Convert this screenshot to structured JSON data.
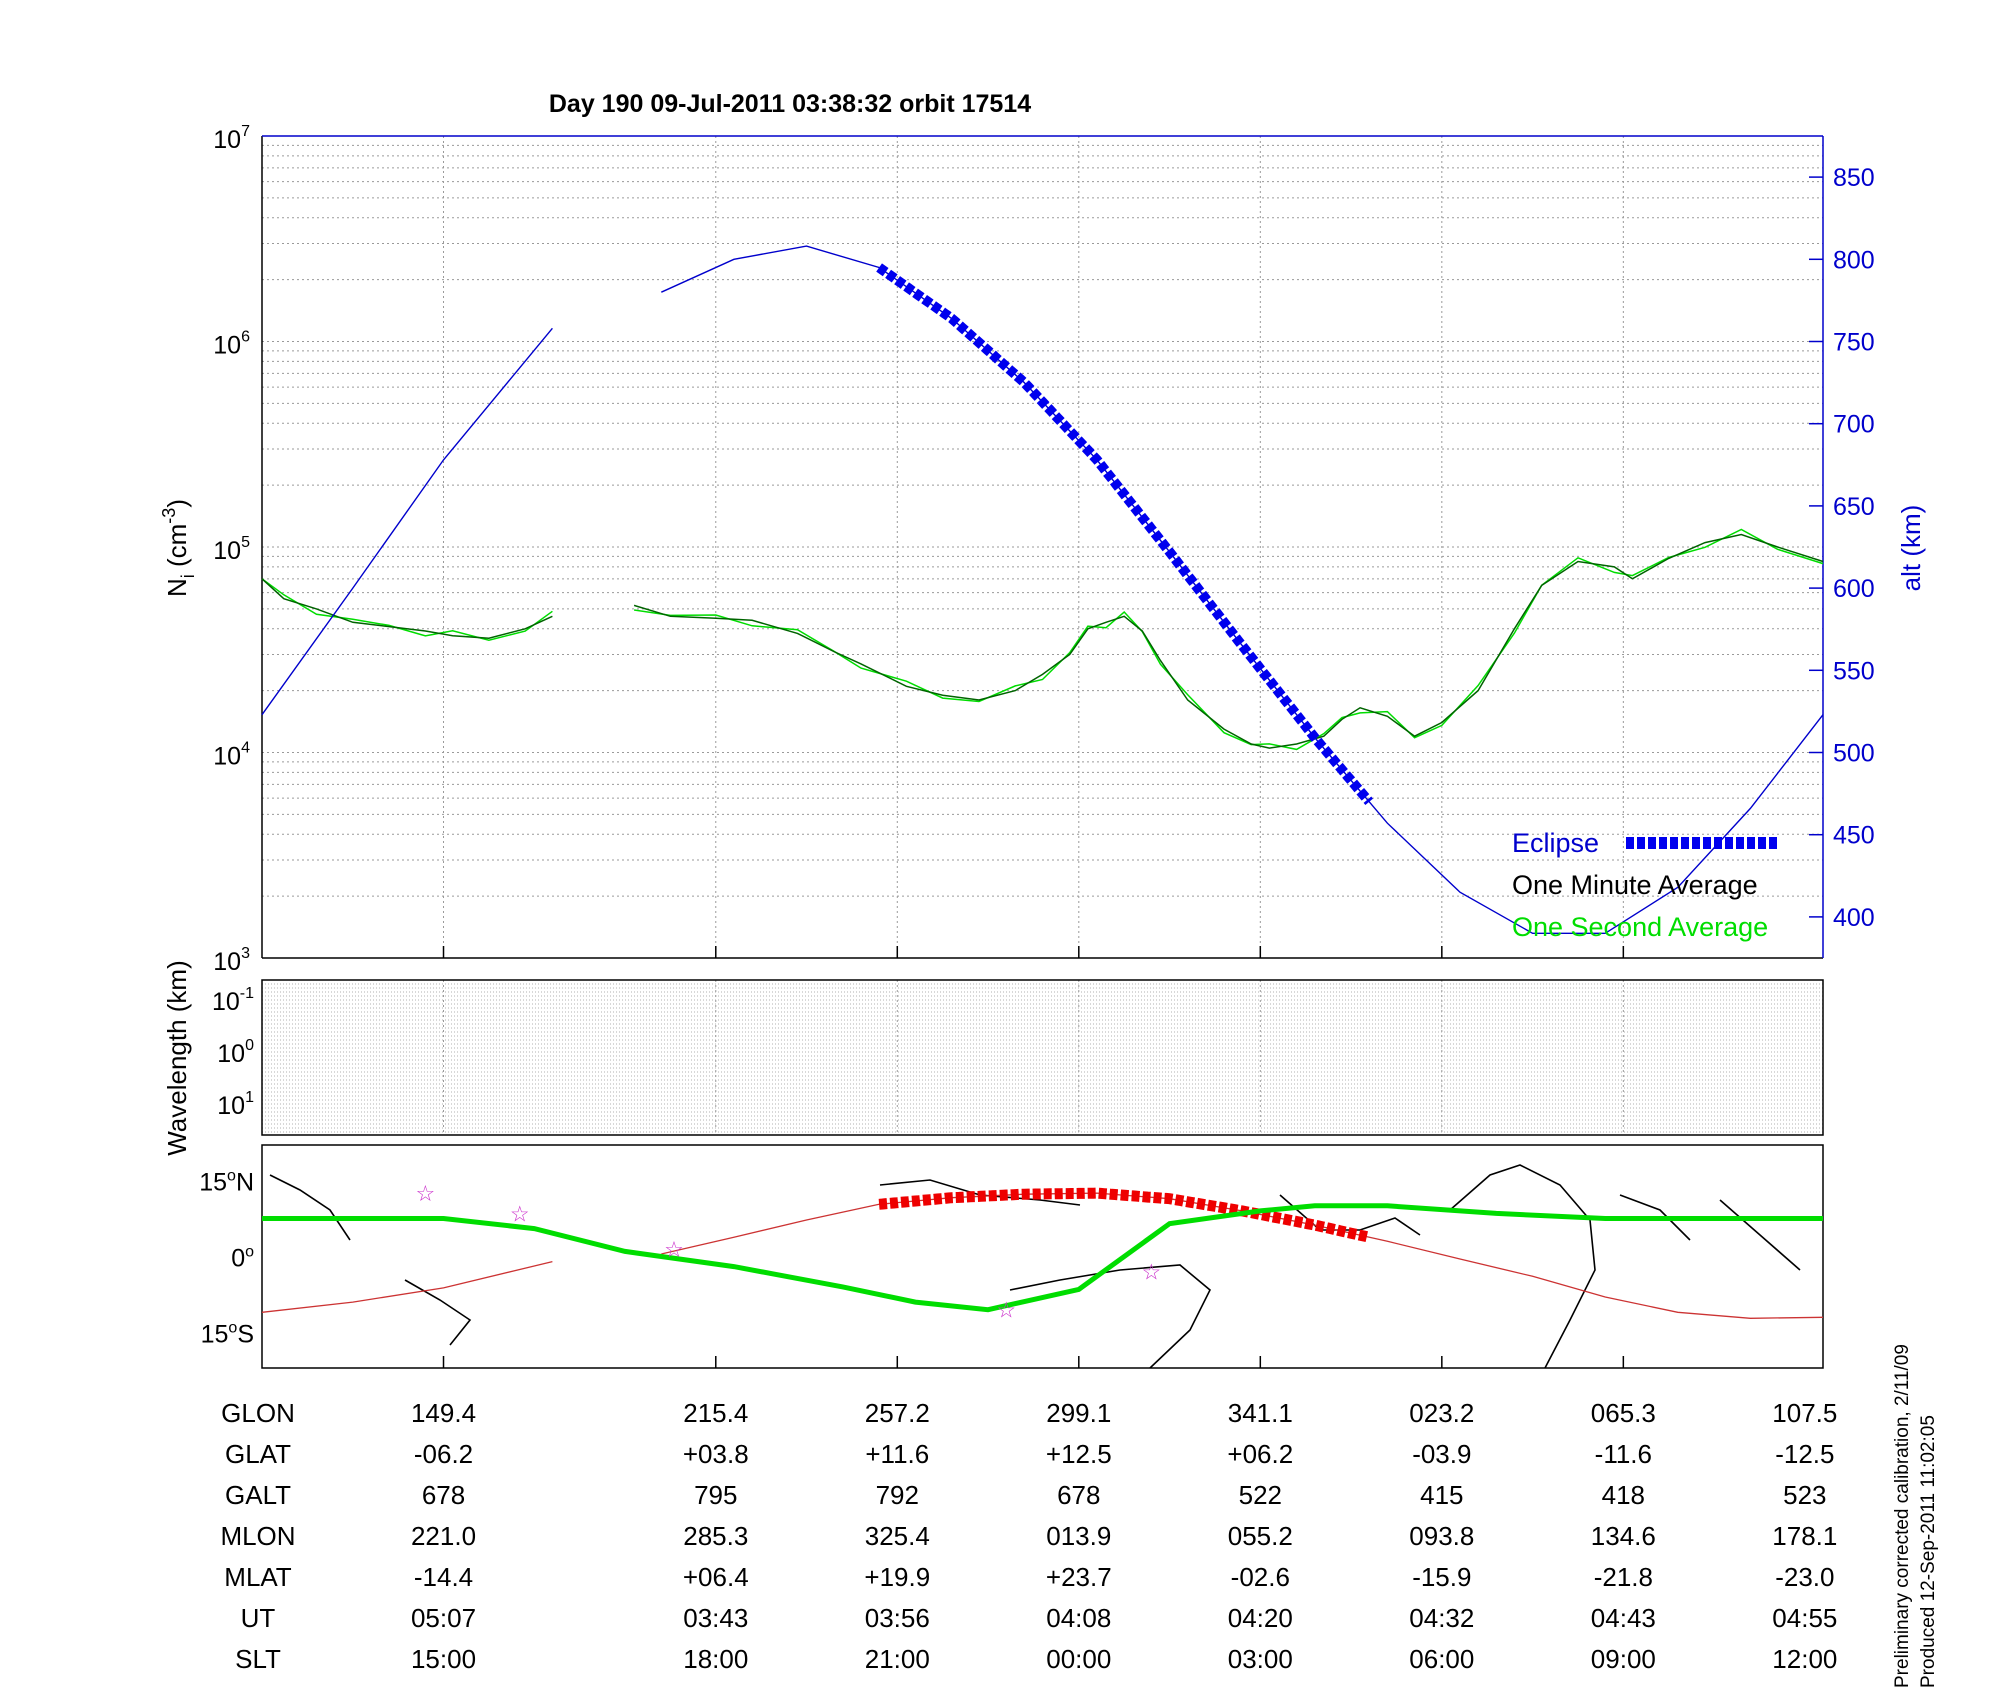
{
  "title": "Day 190  09-Jul-2011 03:38:32   orbit 17514",
  "side_notes": [
    "Preliminary corrected calibration, 2/11/09",
    "Produced 12-Sep-2011 11:02:05"
  ],
  "colors": {
    "axis_right": "#0000cc",
    "min_avg": "#006400",
    "sec_avg": "#00dd00",
    "eclipse": "#0000ee",
    "eclipse_map": "#ee0000",
    "star": "#cc33cc",
    "track": "#cc3333"
  },
  "chart_data": [
    {
      "panel": "density",
      "type": "line",
      "ylabel": "N_i (cm^-3)",
      "ylabel_parts": {
        "base": "N",
        "sub": "i",
        "unit_open": " (cm",
        "unit_sup": "-3",
        "unit_close": ")"
      },
      "yscale": "log",
      "ylim": [
        1000,
        10000000
      ],
      "y_ticks": [
        {
          "base": "10",
          "exp": "3"
        },
        {
          "base": "10",
          "exp": "4"
        },
        {
          "base": "10",
          "exp": "5"
        },
        {
          "base": "10",
          "exp": "6"
        },
        {
          "base": "10",
          "exp": "7"
        }
      ],
      "y2label": "alt (km)",
      "y2lim": [
        375,
        875
      ],
      "y2_ticks": [
        "400",
        "450",
        "500",
        "550",
        "600",
        "650",
        "700",
        "750",
        "800",
        "850"
      ],
      "x_index_range": [
        0,
        8.6
      ],
      "grid": "on",
      "legend": {
        "placement": "bottom-right",
        "entries": [
          "Eclipse",
          "One Minute Average",
          "One Second Average"
        ]
      },
      "series": [
        {
          "name": "One Minute Average",
          "x": [
            0,
            0.12,
            0.3,
            0.5,
            0.7,
            0.9,
            1.05,
            1.25,
            1.45,
            1.6,
            2.05,
            2.25,
            2.5,
            2.7,
            2.95,
            3.15,
            3.3,
            3.55,
            3.75,
            3.95,
            4.15,
            4.3,
            4.45,
            4.55,
            4.65,
            4.75,
            4.85,
            4.95,
            5.1,
            5.3,
            5.45,
            5.55,
            5.7,
            5.85,
            5.95,
            6.05,
            6.2,
            6.35,
            6.5,
            6.7,
            6.9,
            7.05,
            7.25,
            7.45,
            7.55,
            7.75,
            7.95,
            8.15,
            8.35,
            8.6
          ],
          "y": [
            70000,
            56000,
            50000,
            43000,
            41000,
            39000,
            37000,
            36000,
            40000,
            46000,
            52000,
            46000,
            45000,
            44000,
            38000,
            31000,
            27000,
            21000,
            19000,
            18000,
            20000,
            24000,
            30000,
            40000,
            43000,
            46000,
            39000,
            28000,
            18000,
            13000,
            11000,
            10500,
            11000,
            12000,
            14500,
            16500,
            15000,
            12000,
            14000,
            20000,
            40000,
            65000,
            85000,
            80000,
            70000,
            88000,
            105000,
            115000,
            100000,
            85000
          ]
        },
        {
          "name": "altitude",
          "x": [
            0,
            0.5,
            1.0,
            1.6,
            2.2,
            2.6,
            3.0,
            3.4,
            3.8,
            4.2,
            4.6,
            5.0,
            5.4,
            5.8,
            6.2,
            6.6,
            7.0,
            7.4,
            7.8,
            8.2,
            8.6
          ],
          "y": [
            523,
            600,
            678,
            758,
            780,
            800,
            808,
            795,
            764,
            725,
            678,
            622,
            565,
            509,
            457,
            415,
            390,
            390,
            418,
            466,
            523
          ]
        },
        {
          "name": "Eclipse",
          "x_range": [
            3.4,
            6.1
          ]
        }
      ]
    },
    {
      "panel": "wavelength",
      "type": "heatmap",
      "ylabel": "Wavelength (km)",
      "y_ticks": [
        {
          "base": "10",
          "exp": "-1"
        },
        {
          "base": "10",
          "exp": "0"
        },
        {
          "base": "10",
          "exp": "1"
        }
      ],
      "values": []
    },
    {
      "panel": "map",
      "type": "line",
      "y_ticks": [
        {
          "num": "15",
          "unit": "N"
        },
        {
          "num": "0",
          "unit": ""
        },
        {
          "num": "15",
          "unit": "S"
        }
      ],
      "ylim": [
        -22,
        22
      ],
      "series": [
        {
          "name": "magnetic equator",
          "x": [
            0,
            0.3,
            1.0,
            1.5,
            2.0,
            2.6,
            3.2,
            3.6,
            4.0,
            4.5,
            5.0,
            5.5,
            5.8,
            6.2,
            6.8,
            7.4,
            7.8,
            8.2,
            8.6
          ],
          "y": [
            7.5,
            7.5,
            7.5,
            5.5,
            1.0,
            -2.0,
            -6.0,
            -9.0,
            -10.5,
            -6.5,
            6.5,
            9.0,
            10.0,
            10.0,
            8.5,
            7.5,
            7.5,
            7.5,
            7.5
          ]
        },
        {
          "name": "ground track",
          "x": [
            0,
            0.5,
            1.0,
            1.6,
            2.2,
            2.6,
            3.0,
            3.4,
            3.8,
            4.2,
            4.6,
            5.0,
            5.4,
            5.8,
            6.2,
            6.6,
            7.0,
            7.4,
            7.8,
            8.2,
            8.6
          ],
          "y": [
            -11,
            -9,
            -6.2,
            -1,
            0.5,
            3.8,
            7.2,
            10.3,
            11.6,
            12.3,
            12.5,
            11.4,
            9.0,
            6.2,
            3.0,
            -0.5,
            -3.9,
            -8.0,
            -11.0,
            -12.2,
            -12.0
          ]
        },
        {
          "name": "Eclipse",
          "x_range": [
            3.4,
            6.1
          ]
        }
      ],
      "markers": [
        {
          "x": 0.9,
          "y": 12.5
        },
        {
          "x": 1.42,
          "y": 8.5
        },
        {
          "x": 2.27,
          "y": 1.5
        },
        {
          "x": 4.9,
          "y": -3.0
        },
        {
          "x": 4.1,
          "y": -10.5
        }
      ]
    }
  ],
  "table": {
    "row_labels": [
      "GLON",
      "GLAT",
      "GALT",
      "MLON",
      "MLAT",
      "UT",
      "SLT"
    ],
    "columns": [
      [
        "149.4",
        "-06.2",
        "678",
        "221.0",
        "-14.4",
        "05:07",
        "15:00"
      ],
      [
        "215.4",
        "+03.8",
        "795",
        "285.3",
        "+06.4",
        "03:43",
        "18:00"
      ],
      [
        "257.2",
        "+11.6",
        "792",
        "325.4",
        "+19.9",
        "03:56",
        "21:00"
      ],
      [
        "299.1",
        "+12.5",
        "678",
        "013.9",
        "+23.7",
        "04:08",
        "00:00"
      ],
      [
        "341.1",
        "+06.2",
        "522",
        "055.2",
        "-02.6",
        "04:20",
        "03:00"
      ],
      [
        "023.2",
        "-03.9",
        "415",
        "093.8",
        "-15.9",
        "04:32",
        "06:00"
      ],
      [
        "065.3",
        "-11.6",
        "418",
        "134.6",
        "-21.8",
        "04:43",
        "09:00"
      ],
      [
        "107.5",
        "-12.5",
        "523",
        "178.1",
        "-23.0",
        "04:55",
        "12:00"
      ]
    ]
  }
}
